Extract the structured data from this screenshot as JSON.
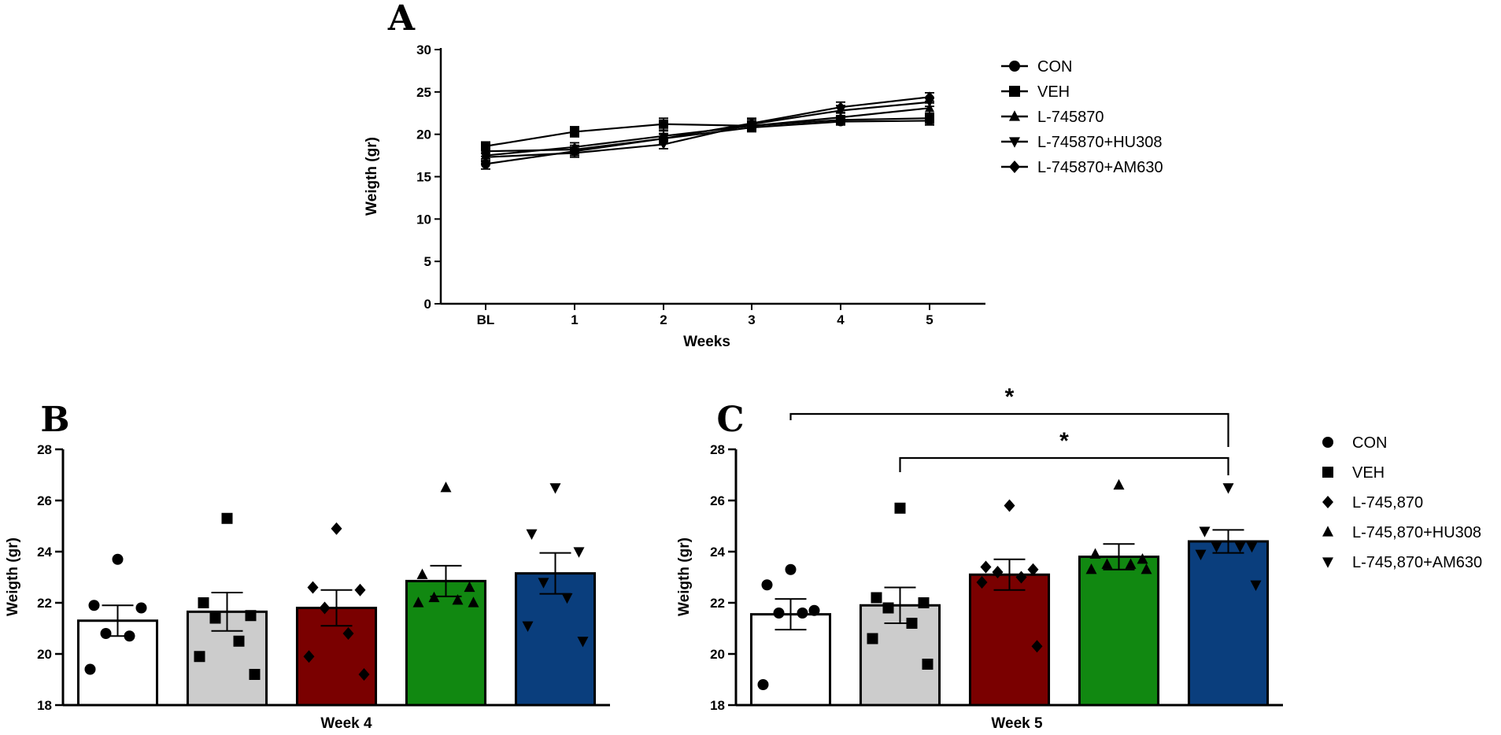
{
  "chart_data": [
    {
      "id": "A",
      "panel_label": "A",
      "type": "line",
      "xlabel": "Weeks",
      "ylabel": "Weigth (gr)",
      "categories": [
        "BL",
        "1",
        "2",
        "3",
        "4",
        "5"
      ],
      "ylim": [
        0,
        30
      ],
      "yticks": [
        "0",
        "5",
        "10",
        "15",
        "20",
        "25",
        "30"
      ],
      "series": [
        {
          "name": "CON",
          "marker": "circle",
          "values": [
            16.5,
            18.0,
            19.5,
            20.8,
            21.5,
            21.6
          ],
          "err": [
            0.6,
            0.5,
            0.6,
            0.5,
            0.4,
            0.5
          ]
        },
        {
          "name": "VEH",
          "marker": "square",
          "values": [
            18.6,
            20.3,
            21.2,
            21.0,
            21.7,
            21.9
          ],
          "err": [
            0.5,
            0.6,
            0.7,
            0.6,
            0.5,
            0.6
          ]
        },
        {
          "name": "L-745870",
          "marker": "triangle-up",
          "values": [
            17.5,
            18.5,
            19.8,
            21.0,
            22.0,
            23.1
          ],
          "err": [
            0.6,
            0.5,
            0.6,
            0.5,
            0.5,
            0.6
          ]
        },
        {
          "name": "L-745870+HU308",
          "marker": "triangle-down",
          "values": [
            17.3,
            17.8,
            18.8,
            21.2,
            22.8,
            23.8
          ],
          "err": [
            0.5,
            0.5,
            0.5,
            0.6,
            0.6,
            0.5
          ]
        },
        {
          "name": "L-745870+AM630",
          "marker": "diamond",
          "values": [
            18.0,
            18.2,
            19.5,
            21.3,
            23.2,
            24.4
          ],
          "err": [
            0.6,
            0.5,
            0.5,
            0.6,
            0.6,
            0.5
          ]
        }
      ]
    },
    {
      "id": "B",
      "panel_label": "B",
      "type": "bar",
      "xlabel": "Week 4",
      "ylabel": "Weigth (gr)",
      "ylim": [
        18,
        28
      ],
      "yticks": [
        "18",
        "20",
        "22",
        "24",
        "26",
        "28"
      ],
      "groups": [
        {
          "name": "CON",
          "color": "#ffffff",
          "marker": "circle",
          "mean": 21.3,
          "sem": 0.6,
          "points": [
            23.7,
            21.9,
            21.8,
            20.8,
            20.7,
            19.4
          ]
        },
        {
          "name": "VEH",
          "color": "#cccccc",
          "marker": "square",
          "mean": 21.65,
          "sem": 0.75,
          "points": [
            25.3,
            22.0,
            21.5,
            21.4,
            20.5,
            19.9,
            19.2
          ]
        },
        {
          "name": "L-745,870",
          "color": "#7a0000",
          "marker": "diamond",
          "mean": 21.8,
          "sem": 0.7,
          "points": [
            24.9,
            22.6,
            22.5,
            21.8,
            20.8,
            19.9,
            19.2
          ]
        },
        {
          "name": "L-745,870+HU308",
          "color": "#118811",
          "marker": "triangle-up",
          "mean": 22.85,
          "sem": 0.6,
          "points": [
            26.5,
            23.1,
            22.6,
            22.2,
            22.1,
            22.0,
            22.0
          ]
        },
        {
          "name": "L-745,870+AM630",
          "color": "#0a3e7d",
          "marker": "triangle-down",
          "mean": 23.15,
          "sem": 0.8,
          "points": [
            26.5,
            24.7,
            24.0,
            22.8,
            22.2,
            21.1,
            20.5
          ]
        }
      ]
    },
    {
      "id": "C",
      "panel_label": "C",
      "type": "bar",
      "xlabel": "Week 5",
      "ylabel": "Weigth (gr)",
      "ylim": [
        18,
        28
      ],
      "yticks": [
        "18",
        "20",
        "22",
        "24",
        "26",
        "28"
      ],
      "groups": [
        {
          "name": "CON",
          "color": "#ffffff",
          "marker": "circle",
          "mean": 21.55,
          "sem": 0.6,
          "points": [
            23.3,
            22.7,
            21.7,
            21.6,
            21.6,
            18.8
          ]
        },
        {
          "name": "VEH",
          "color": "#cccccc",
          "marker": "square",
          "mean": 21.9,
          "sem": 0.7,
          "points": [
            25.7,
            22.2,
            22.0,
            21.8,
            21.2,
            20.6,
            19.6
          ]
        },
        {
          "name": "L-745,870",
          "color": "#7a0000",
          "marker": "diamond",
          "mean": 23.1,
          "sem": 0.6,
          "points": [
            25.8,
            23.4,
            23.3,
            23.2,
            23.0,
            22.8,
            20.3
          ]
        },
        {
          "name": "L-745,870+HU308",
          "color": "#118811",
          "marker": "triangle-up",
          "mean": 23.8,
          "sem": 0.5,
          "points": [
            26.6,
            23.9,
            23.7,
            23.5,
            23.5,
            23.3,
            23.3
          ]
        },
        {
          "name": "L-745,870+AM630",
          "color": "#0a3e7d",
          "marker": "triangle-down",
          "mean": 24.4,
          "sem": 0.45,
          "points": [
            26.5,
            24.8,
            24.2,
            24.2,
            24.2,
            23.9,
            22.7
          ]
        }
      ],
      "significance": [
        {
          "from": 0,
          "to": 4,
          "label": "*"
        },
        {
          "from": 1,
          "to": 4,
          "label": "*"
        }
      ]
    }
  ],
  "legends": {
    "A": [
      "CON",
      "VEH",
      "L-745870",
      "L-745870+HU308",
      "L-745870+AM630"
    ],
    "C": [
      "CON",
      "VEH",
      "L-745,870",
      "L-745,870+HU308",
      "L-745,870+AM630"
    ]
  }
}
